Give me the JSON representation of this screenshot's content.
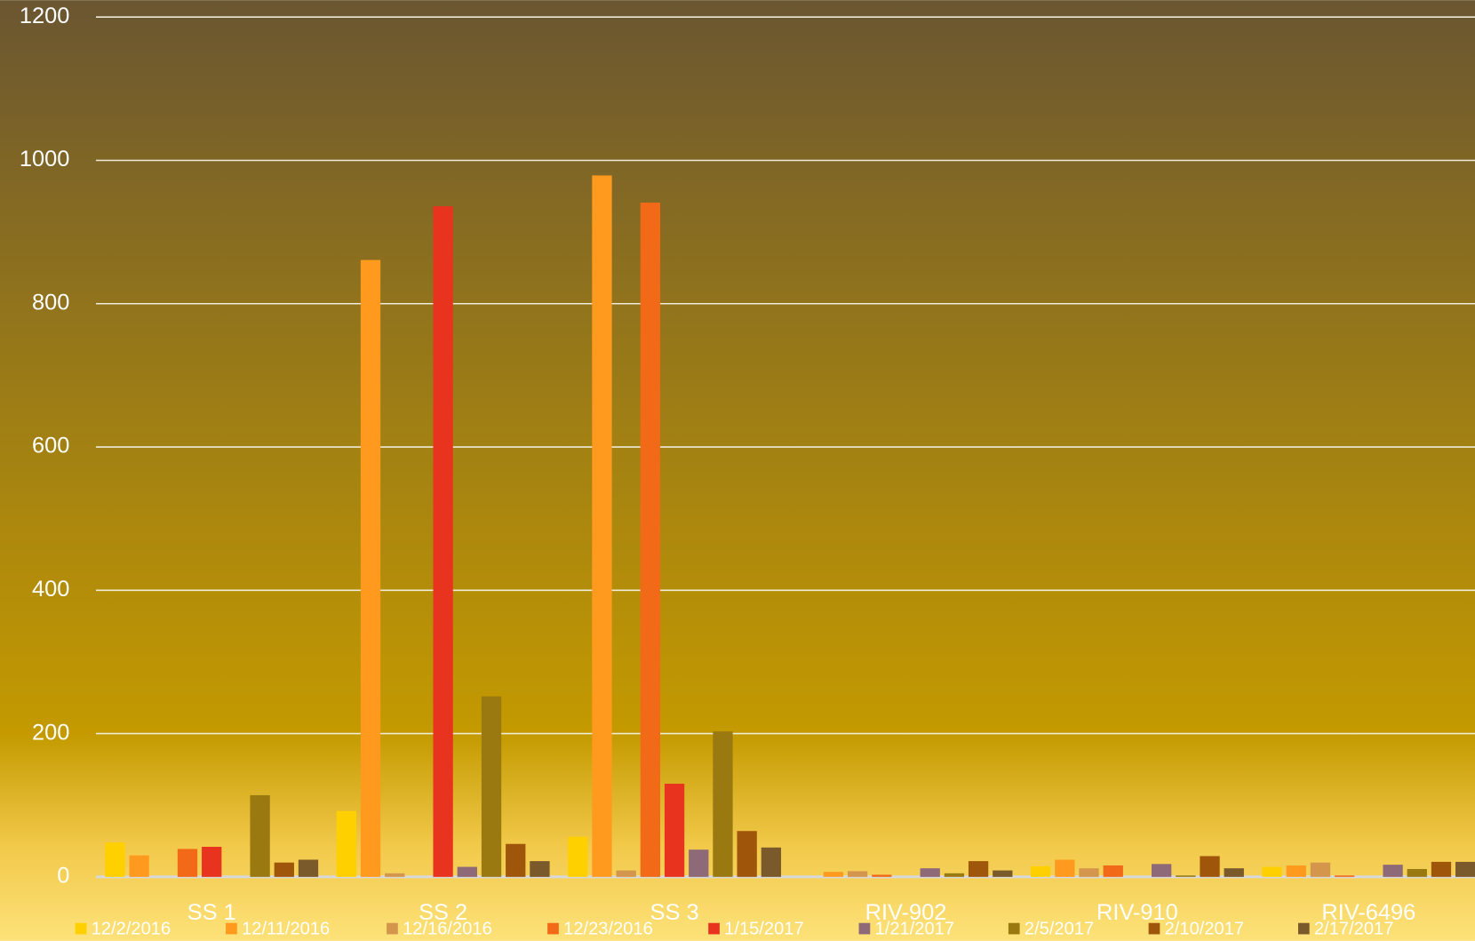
{
  "chart_data": {
    "type": "bar",
    "categories": [
      "SS 1",
      "SS 2",
      "SS 3",
      "RIV-902",
      "RIV-910",
      "RIV-6496"
    ],
    "series": [
      {
        "name": "12/2/2016",
        "color": "#ffd000",
        "values": [
          48,
          92,
          56,
          0,
          15,
          14
        ]
      },
      {
        "name": "12/11/2016",
        "color": "#ff9a1f",
        "values": [
          30,
          861,
          979,
          7,
          24,
          16
        ]
      },
      {
        "name": "12/16/2016",
        "color": "#d4964c",
        "values": [
          0,
          5,
          9,
          8,
          12,
          20
        ]
      },
      {
        "name": "12/23/2016",
        "color": "#f26a18",
        "values": [
          39,
          0,
          941,
          3,
          16,
          2
        ]
      },
      {
        "name": "1/15/2017",
        "color": "#e8341e",
        "values": [
          42,
          936,
          130,
          0,
          0,
          0
        ]
      },
      {
        "name": "1/21/2017",
        "color": "#8e6a78",
        "values": [
          0,
          14,
          38,
          12,
          18,
          17
        ]
      },
      {
        "name": "2/5/2017",
        "color": "#9a7a10",
        "values": [
          114,
          252,
          203,
          5,
          2,
          11
        ]
      },
      {
        "name": "2/10/2017",
        "color": "#a0560a",
        "values": [
          20,
          46,
          64,
          22,
          29,
          21
        ]
      },
      {
        "name": "2/17/2017",
        "color": "#7a5a2a",
        "values": [
          24,
          22,
          41,
          9,
          12,
          21
        ]
      }
    ],
    "ylim": [
      0,
      1200
    ],
    "yticks": [
      0,
      200,
      400,
      600,
      800,
      1000,
      1200
    ],
    "grid": true,
    "legend": "bottom"
  }
}
